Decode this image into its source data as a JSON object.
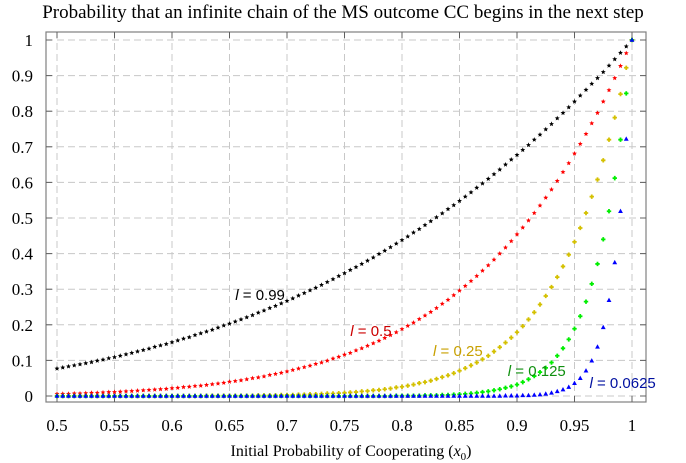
{
  "chart_data": {
    "type": "scatter",
    "title": "Probability that an infinite chain of the MS outcome CC begins in the next step",
    "xlabel": "Initial Probability of Cooperating (x0)",
    "xlabel_main": "Initial Probability of Cooperating (",
    "xlabel_var": "x",
    "xlabel_sub": "0",
    "xlabel_close": ")",
    "ylabel": "",
    "xlim": [
      0.5,
      1.0
    ],
    "ylim": [
      0,
      1.0
    ],
    "xticks": [
      0.5,
      0.55,
      0.6,
      0.65,
      0.7,
      0.75,
      0.8,
      0.85,
      0.9,
      0.95,
      1
    ],
    "xtick_labels": [
      "0.5",
      "0.55",
      "0.6",
      "0.65",
      "0.7",
      "0.75",
      "0.8",
      "0.85",
      "0.9",
      "0.95",
      "1"
    ],
    "yticks": [
      0,
      0.1,
      0.2,
      0.3,
      0.4,
      0.5,
      0.6,
      0.7,
      0.8,
      0.9,
      1
    ],
    "ytick_labels": [
      "0",
      "0.1",
      "0.2",
      "0.3",
      "0.4",
      "0.5",
      "0.6",
      "0.7",
      "0.8",
      "0.9",
      "1"
    ],
    "grid": true,
    "x": {
      "start": 0.5,
      "end": 1.0,
      "step": 0.005
    },
    "series": [
      {
        "name": "l = 0.99",
        "l_value": "0.99",
        "color": "#000000",
        "label_color": "#000000",
        "marker": "star",
        "label_at": [
          0.655,
          0.27
        ],
        "values": [
          0.077,
          0.08,
          0.083,
          0.086,
          0.089,
          0.092,
          0.095,
          0.099,
          0.102,
          0.106,
          0.109,
          0.113,
          0.117,
          0.121,
          0.125,
          0.129,
          0.133,
          0.138,
          0.142,
          0.146,
          0.151,
          0.156,
          0.161,
          0.165,
          0.171,
          0.176,
          0.181,
          0.186,
          0.192,
          0.198,
          0.203,
          0.209,
          0.215,
          0.221,
          0.227,
          0.234,
          0.24,
          0.247,
          0.253,
          0.26,
          0.267,
          0.274,
          0.282,
          0.289,
          0.297,
          0.304,
          0.312,
          0.32,
          0.328,
          0.337,
          0.345,
          0.354,
          0.362,
          0.371,
          0.38,
          0.389,
          0.399,
          0.408,
          0.418,
          0.428,
          0.438,
          0.448,
          0.459,
          0.469,
          0.48,
          0.491,
          0.502,
          0.513,
          0.525,
          0.536,
          0.548,
          0.56,
          0.572,
          0.585,
          0.597,
          0.61,
          0.623,
          0.636,
          0.65,
          0.664,
          0.677,
          0.691,
          0.705,
          0.72,
          0.734,
          0.749,
          0.764,
          0.78,
          0.795,
          0.811,
          0.827,
          0.844,
          0.86,
          0.877,
          0.893,
          0.91,
          0.928,
          0.946,
          0.964,
          0.982,
          1.0
        ]
      },
      {
        "name": "l = 0.5",
        "l_value": "0.5",
        "color": "#ff0000",
        "label_color": "#cc0000",
        "marker": "star",
        "label_at": [
          0.755,
          0.168
        ],
        "values": [
          0.006,
          0.006,
          0.006,
          0.007,
          0.007,
          0.008,
          0.009,
          0.009,
          0.01,
          0.011,
          0.011,
          0.012,
          0.013,
          0.014,
          0.015,
          0.016,
          0.017,
          0.018,
          0.019,
          0.02,
          0.022,
          0.023,
          0.025,
          0.026,
          0.028,
          0.029,
          0.031,
          0.033,
          0.035,
          0.037,
          0.04,
          0.042,
          0.044,
          0.047,
          0.05,
          0.052,
          0.055,
          0.059,
          0.062,
          0.065,
          0.069,
          0.073,
          0.077,
          0.081,
          0.085,
          0.09,
          0.094,
          0.099,
          0.105,
          0.11,
          0.116,
          0.121,
          0.128,
          0.134,
          0.141,
          0.148,
          0.155,
          0.163,
          0.171,
          0.179,
          0.188,
          0.197,
          0.206,
          0.216,
          0.226,
          0.236,
          0.247,
          0.259,
          0.27,
          0.283,
          0.296,
          0.309,
          0.323,
          0.337,
          0.352,
          0.367,
          0.383,
          0.4,
          0.417,
          0.435,
          0.454,
          0.473,
          0.493,
          0.514,
          0.535,
          0.557,
          0.58,
          0.604,
          0.629,
          0.654,
          0.681,
          0.708,
          0.736,
          0.766,
          0.795,
          0.827,
          0.859,
          0.893,
          0.927,
          0.963,
          1.0
        ]
      },
      {
        "name": "l = 0.25",
        "l_value": "0.25",
        "color": "#d4c000",
        "label_color": "#c8a000",
        "marker": "plus-dot",
        "label_at": [
          0.827,
          0.112
        ],
        "values": [
          0.0,
          0.0,
          0.0,
          0.0,
          0.0,
          0.0,
          0.0,
          0.0,
          0.0,
          0.0,
          0.0,
          0.0,
          0.0,
          0.0,
          0.0,
          0.0,
          0.0,
          0.0,
          0.0,
          0.0,
          0.0,
          0.0,
          0.0,
          0.0,
          0.0,
          0.0,
          0.001,
          0.001,
          0.001,
          0.001,
          0.001,
          0.001,
          0.001,
          0.001,
          0.001,
          0.002,
          0.002,
          0.002,
          0.002,
          0.003,
          0.003,
          0.003,
          0.004,
          0.004,
          0.005,
          0.005,
          0.006,
          0.007,
          0.007,
          0.008,
          0.009,
          0.01,
          0.011,
          0.013,
          0.014,
          0.016,
          0.017,
          0.019,
          0.021,
          0.024,
          0.026,
          0.029,
          0.032,
          0.036,
          0.039,
          0.043,
          0.048,
          0.053,
          0.058,
          0.064,
          0.071,
          0.078,
          0.086,
          0.094,
          0.103,
          0.113,
          0.125,
          0.137,
          0.15,
          0.164,
          0.179,
          0.196,
          0.215,
          0.235,
          0.257,
          0.281,
          0.306,
          0.334,
          0.364,
          0.397,
          0.433,
          0.472,
          0.514,
          0.56,
          0.608,
          0.662,
          0.72,
          0.782,
          0.848,
          0.922,
          1.0
        ]
      },
      {
        "name": "l = 0.125",
        "l_value": "0.125",
        "color": "#00ee00",
        "label_color": "#109010",
        "marker": "plus-dot",
        "label_at": [
          0.892,
          0.056
        ],
        "values": [
          0.0,
          0.0,
          0.0,
          0.0,
          0.0,
          0.0,
          0.0,
          0.0,
          0.0,
          0.0,
          0.0,
          0.0,
          0.0,
          0.0,
          0.0,
          0.0,
          0.0,
          0.0,
          0.0,
          0.0,
          0.0,
          0.0,
          0.0,
          0.0,
          0.0,
          0.0,
          0.0,
          0.0,
          0.0,
          0.0,
          0.0,
          0.0,
          0.0,
          0.0,
          0.0,
          0.0,
          0.0,
          0.0,
          0.0,
          0.0,
          0.0,
          0.0,
          0.0,
          0.0,
          0.0,
          0.0,
          0.0,
          0.0,
          0.0,
          0.0,
          0.0,
          0.0,
          0.0,
          0.0,
          0.0,
          0.0,
          0.0,
          0.0,
          0.0,
          0.001,
          0.001,
          0.001,
          0.001,
          0.001,
          0.002,
          0.002,
          0.002,
          0.003,
          0.003,
          0.004,
          0.005,
          0.006,
          0.007,
          0.009,
          0.011,
          0.013,
          0.016,
          0.019,
          0.023,
          0.027,
          0.032,
          0.039,
          0.047,
          0.056,
          0.067,
          0.079,
          0.094,
          0.113,
          0.134,
          0.159,
          0.189,
          0.224,
          0.265,
          0.315,
          0.371,
          0.44,
          0.519,
          0.612,
          0.72,
          0.85,
          1.0
        ]
      },
      {
        "name": "l = 0.0625",
        "l_value": "0.0625",
        "color": "#0000ff",
        "label_color": "#0010a0",
        "marker": "triangle",
        "label_at": [
          0.963,
          0.022
        ],
        "values": [
          0.0,
          0.0,
          0.0,
          0.0,
          0.0,
          0.0,
          0.0,
          0.0,
          0.0,
          0.0,
          0.0,
          0.0,
          0.0,
          0.0,
          0.0,
          0.0,
          0.0,
          0.0,
          0.0,
          0.0,
          0.0,
          0.0,
          0.0,
          0.0,
          0.0,
          0.0,
          0.0,
          0.0,
          0.0,
          0.0,
          0.0,
          0.0,
          0.0,
          0.0,
          0.0,
          0.0,
          0.0,
          0.0,
          0.0,
          0.0,
          0.0,
          0.0,
          0.0,
          0.0,
          0.0,
          0.0,
          0.0,
          0.0,
          0.0,
          0.0,
          0.0,
          0.0,
          0.0,
          0.0,
          0.0,
          0.0,
          0.0,
          0.0,
          0.0,
          0.0,
          0.0,
          0.0,
          0.0,
          0.0,
          0.0,
          0.0,
          0.0,
          0.0,
          0.0,
          0.0,
          0.0,
          0.0,
          0.0,
          0.0,
          0.0,
          0.0,
          0.0,
          0.0,
          0.001,
          0.001,
          0.001,
          0.002,
          0.002,
          0.003,
          0.004,
          0.006,
          0.009,
          0.013,
          0.018,
          0.025,
          0.036,
          0.05,
          0.071,
          0.099,
          0.138,
          0.193,
          0.269,
          0.375,
          0.519,
          0.722,
          1.0
        ]
      }
    ]
  }
}
